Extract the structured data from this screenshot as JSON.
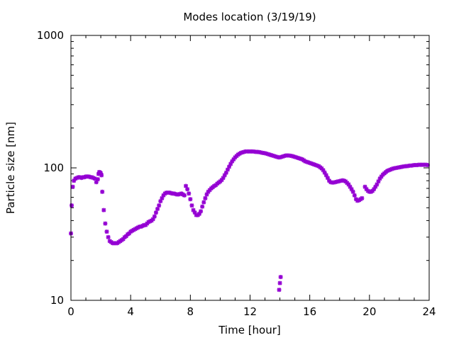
{
  "chart_data": {
    "type": "scatter",
    "title": "Modes location (3/19/19)",
    "xlabel": "Time [hour]",
    "ylabel": "Particle size [nm]",
    "xlim": [
      0,
      24
    ],
    "ylim": [
      10,
      1000
    ],
    "yscale": "log",
    "grid": false,
    "marker_color": "#9400D3",
    "x_ticks": [
      0,
      4,
      8,
      12,
      16,
      20,
      24
    ],
    "x_tick_labels": [
      "0",
      "4",
      "8",
      "12",
      "16",
      "20",
      "24"
    ],
    "y_ticks": [
      10,
      100,
      1000
    ],
    "y_tick_labels": [
      "10",
      "100",
      "1000"
    ],
    "series": [
      {
        "points": [
          [
            0.0,
            32
          ],
          [
            0.05,
            52
          ],
          [
            0.12,
            72
          ],
          [
            0.2,
            80
          ],
          [
            0.3,
            83
          ],
          [
            0.4,
            84
          ],
          [
            0.5,
            85
          ],
          [
            0.6,
            85
          ],
          [
            0.7,
            84
          ],
          [
            0.8,
            85
          ],
          [
            0.9,
            85
          ],
          [
            1.0,
            86
          ],
          [
            1.1,
            86
          ],
          [
            1.2,
            86
          ],
          [
            1.3,
            85
          ],
          [
            1.4,
            85
          ],
          [
            1.5,
            84
          ],
          [
            1.6,
            83
          ],
          [
            1.7,
            78
          ],
          [
            1.8,
            82
          ],
          [
            1.85,
            90
          ],
          [
            1.9,
            93
          ],
          [
            1.95,
            92
          ],
          [
            2.0,
            91
          ],
          [
            2.05,
            88
          ],
          [
            2.1,
            66
          ],
          [
            2.2,
            48
          ],
          [
            2.3,
            38
          ],
          [
            2.4,
            33
          ],
          [
            2.5,
            30
          ],
          [
            2.6,
            28
          ],
          [
            2.7,
            27.5
          ],
          [
            2.8,
            27
          ],
          [
            2.9,
            27
          ],
          [
            3.0,
            27
          ],
          [
            3.1,
            27
          ],
          [
            3.2,
            27.5
          ],
          [
            3.3,
            28
          ],
          [
            3.4,
            28.5
          ],
          [
            3.5,
            29
          ],
          [
            3.6,
            30
          ],
          [
            3.7,
            30.5
          ],
          [
            3.8,
            31.5
          ],
          [
            3.9,
            32
          ],
          [
            4.0,
            33
          ],
          [
            4.1,
            33.5
          ],
          [
            4.2,
            34
          ],
          [
            4.3,
            34.5
          ],
          [
            4.4,
            35
          ],
          [
            4.5,
            35.5
          ],
          [
            4.6,
            36
          ],
          [
            4.7,
            36
          ],
          [
            4.8,
            36.5
          ],
          [
            4.9,
            37
          ],
          [
            5.0,
            37
          ],
          [
            5.1,
            38
          ],
          [
            5.2,
            39
          ],
          [
            5.3,
            39.5
          ],
          [
            5.4,
            40
          ],
          [
            5.5,
            41
          ],
          [
            5.6,
            43
          ],
          [
            5.7,
            46
          ],
          [
            5.8,
            49
          ],
          [
            5.9,
            52
          ],
          [
            6.0,
            56
          ],
          [
            6.1,
            59
          ],
          [
            6.2,
            62
          ],
          [
            6.3,
            64
          ],
          [
            6.4,
            65
          ],
          [
            6.5,
            65
          ],
          [
            6.6,
            65
          ],
          [
            6.7,
            64.5
          ],
          [
            6.8,
            64
          ],
          [
            6.9,
            64
          ],
          [
            7.0,
            63.5
          ],
          [
            7.1,
            63
          ],
          [
            7.2,
            63
          ],
          [
            7.3,
            63.5
          ],
          [
            7.4,
            64
          ],
          [
            7.5,
            63
          ],
          [
            7.6,
            62
          ],
          [
            7.7,
            73
          ],
          [
            7.8,
            69
          ],
          [
            7.9,
            64
          ],
          [
            8.0,
            58
          ],
          [
            8.1,
            52
          ],
          [
            8.2,
            48
          ],
          [
            8.3,
            46
          ],
          [
            8.4,
            44
          ],
          [
            8.5,
            44
          ],
          [
            8.6,
            45
          ],
          [
            8.7,
            47
          ],
          [
            8.8,
            51
          ],
          [
            8.9,
            55
          ],
          [
            9.0,
            59
          ],
          [
            9.1,
            63
          ],
          [
            9.2,
            66
          ],
          [
            9.3,
            68
          ],
          [
            9.4,
            70
          ],
          [
            9.5,
            71.5
          ],
          [
            9.6,
            73
          ],
          [
            9.7,
            74
          ],
          [
            9.8,
            76
          ],
          [
            9.9,
            77.5
          ],
          [
            10.0,
            79
          ],
          [
            10.1,
            81
          ],
          [
            10.2,
            84
          ],
          [
            10.3,
            88
          ],
          [
            10.4,
            92
          ],
          [
            10.5,
            97
          ],
          [
            10.6,
            102
          ],
          [
            10.7,
            107
          ],
          [
            10.8,
            112
          ],
          [
            10.9,
            116
          ],
          [
            11.0,
            120
          ],
          [
            11.1,
            123
          ],
          [
            11.2,
            126
          ],
          [
            11.3,
            128
          ],
          [
            11.4,
            130
          ],
          [
            11.5,
            131
          ],
          [
            11.6,
            132
          ],
          [
            11.7,
            133
          ],
          [
            11.8,
            133
          ],
          [
            11.9,
            133
          ],
          [
            12.0,
            133
          ],
          [
            12.1,
            133
          ],
          [
            12.2,
            133
          ],
          [
            12.3,
            132.5
          ],
          [
            12.4,
            132
          ],
          [
            12.5,
            132
          ],
          [
            12.6,
            131.5
          ],
          [
            12.7,
            131
          ],
          [
            12.8,
            130
          ],
          [
            12.9,
            129.5
          ],
          [
            13.0,
            129
          ],
          [
            13.1,
            128
          ],
          [
            13.2,
            127
          ],
          [
            13.3,
            126
          ],
          [
            13.4,
            125
          ],
          [
            13.5,
            124
          ],
          [
            13.6,
            123
          ],
          [
            13.7,
            122
          ],
          [
            13.8,
            121
          ],
          [
            13.9,
            120
          ],
          [
            14.0,
            120
          ],
          [
            14.1,
            121
          ],
          [
            14.2,
            122
          ],
          [
            14.3,
            123
          ],
          [
            14.4,
            124
          ],
          [
            14.5,
            124
          ],
          [
            14.6,
            124
          ],
          [
            14.7,
            123.5
          ],
          [
            14.8,
            123
          ],
          [
            14.9,
            122
          ],
          [
            15.0,
            121
          ],
          [
            15.1,
            120
          ],
          [
            15.2,
            119
          ],
          [
            15.3,
            118
          ],
          [
            15.4,
            117
          ],
          [
            15.5,
            116
          ],
          [
            15.6,
            114
          ],
          [
            15.7,
            112
          ],
          [
            15.8,
            111
          ],
          [
            15.9,
            110
          ],
          [
            16.0,
            109
          ],
          [
            16.1,
            108
          ],
          [
            16.2,
            107
          ],
          [
            16.3,
            106
          ],
          [
            16.4,
            105
          ],
          [
            16.5,
            104
          ],
          [
            16.6,
            103
          ],
          [
            16.7,
            101
          ],
          [
            16.8,
            99
          ],
          [
            16.9,
            96
          ],
          [
            17.0,
            92
          ],
          [
            17.1,
            88
          ],
          [
            17.2,
            84
          ],
          [
            17.3,
            80
          ],
          [
            17.4,
            78
          ],
          [
            17.5,
            77.5
          ],
          [
            17.6,
            77.5
          ],
          [
            17.7,
            78
          ],
          [
            17.8,
            78.5
          ],
          [
            17.9,
            79
          ],
          [
            18.0,
            79.5
          ],
          [
            18.1,
            80
          ],
          [
            18.2,
            80.5
          ],
          [
            18.3,
            80
          ],
          [
            18.4,
            79
          ],
          [
            18.5,
            77
          ],
          [
            18.6,
            75
          ],
          [
            18.7,
            72
          ],
          [
            18.8,
            69
          ],
          [
            18.9,
            66
          ],
          [
            19.0,
            62
          ],
          [
            19.1,
            58
          ],
          [
            19.2,
            56.5
          ],
          [
            19.3,
            57
          ],
          [
            19.4,
            58
          ],
          [
            19.5,
            59
          ],
          [
            19.7,
            72
          ],
          [
            19.8,
            69
          ],
          [
            19.9,
            67
          ],
          [
            20.0,
            66
          ],
          [
            20.1,
            66
          ],
          [
            20.2,
            67
          ],
          [
            20.3,
            69
          ],
          [
            20.4,
            72
          ],
          [
            20.5,
            75
          ],
          [
            20.6,
            79
          ],
          [
            20.7,
            83
          ],
          [
            20.8,
            86
          ],
          [
            20.9,
            89
          ],
          [
            21.0,
            91
          ],
          [
            21.1,
            93
          ],
          [
            21.2,
            95
          ],
          [
            21.3,
            96
          ],
          [
            21.4,
            97
          ],
          [
            21.5,
            98
          ],
          [
            21.6,
            99
          ],
          [
            21.7,
            99.5
          ],
          [
            21.8,
            100
          ],
          [
            21.9,
            100.5
          ],
          [
            22.0,
            101
          ],
          [
            22.1,
            101.5
          ],
          [
            22.2,
            102
          ],
          [
            22.3,
            102.5
          ],
          [
            22.4,
            103
          ],
          [
            22.5,
            103
          ],
          [
            22.6,
            103.5
          ],
          [
            22.7,
            104
          ],
          [
            22.8,
            104
          ],
          [
            22.9,
            104.5
          ],
          [
            23.0,
            105
          ],
          [
            23.1,
            105
          ],
          [
            23.2,
            105
          ],
          [
            23.3,
            105.5
          ],
          [
            23.4,
            105.5
          ],
          [
            23.5,
            105.5
          ],
          [
            23.6,
            105.5
          ],
          [
            23.7,
            105.5
          ],
          [
            23.8,
            105.5
          ],
          [
            23.9,
            105
          ],
          [
            13.95,
            12
          ],
          [
            14.0,
            13.5
          ],
          [
            14.05,
            15
          ]
        ]
      }
    ]
  }
}
